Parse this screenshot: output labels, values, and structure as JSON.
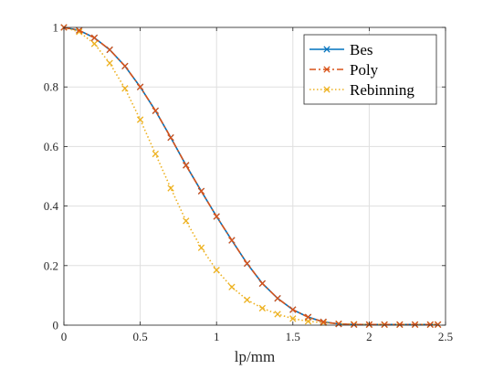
{
  "chart_data": {
    "type": "line",
    "title": "",
    "xlabel": "lp/mm",
    "ylabel": "",
    "xlim": [
      0,
      2.5
    ],
    "ylim": [
      0,
      1
    ],
    "xticks": [
      "0",
      "0.5",
      "1",
      "1.5",
      "2",
      "2.5"
    ],
    "yticks": [
      "0",
      "0.2",
      "0.4",
      "0.6",
      "0.8",
      "1"
    ],
    "grid": true,
    "legend_position": "top-right",
    "x": [
      0,
      0.1,
      0.2,
      0.3,
      0.4,
      0.5,
      0.6,
      0.7,
      0.8,
      0.9,
      1.0,
      1.1,
      1.2,
      1.3,
      1.4,
      1.5,
      1.6,
      1.7,
      1.8,
      1.9,
      2.0,
      2.1,
      2.2,
      2.3,
      2.4,
      2.45
    ],
    "series": [
      {
        "name": "Bes",
        "color": "#0072BD",
        "line_style": "solid",
        "marker": "x",
        "values": [
          1.0,
          0.99,
          0.965,
          0.925,
          0.87,
          0.8,
          0.72,
          0.63,
          0.537,
          0.45,
          0.365,
          0.285,
          0.207,
          0.14,
          0.09,
          0.052,
          0.027,
          0.011,
          0.004,
          0.002,
          0.002,
          0.002,
          0.002,
          0.002,
          0.002,
          0.002
        ]
      },
      {
        "name": "Poly",
        "color": "#D95319",
        "line_style": "dashdot",
        "marker": "x",
        "values": [
          1.0,
          0.99,
          0.965,
          0.925,
          0.87,
          0.8,
          0.72,
          0.63,
          0.537,
          0.45,
          0.365,
          0.285,
          0.207,
          0.14,
          0.09,
          0.052,
          0.027,
          0.011,
          0.004,
          0.002,
          0.002,
          0.002,
          0.002,
          0.002,
          0.002,
          0.002
        ]
      },
      {
        "name": "Rebinning",
        "color": "#EDB120",
        "line_style": "dotted",
        "marker": "x",
        "values": [
          1.0,
          0.985,
          0.945,
          0.88,
          0.795,
          0.69,
          0.575,
          0.46,
          0.35,
          0.26,
          0.185,
          0.128,
          0.085,
          0.057,
          0.037,
          0.022,
          0.013,
          0.008,
          0.005,
          0.003,
          0.002,
          0.002,
          0.002,
          0.002,
          0.002,
          0.002
        ]
      }
    ]
  }
}
